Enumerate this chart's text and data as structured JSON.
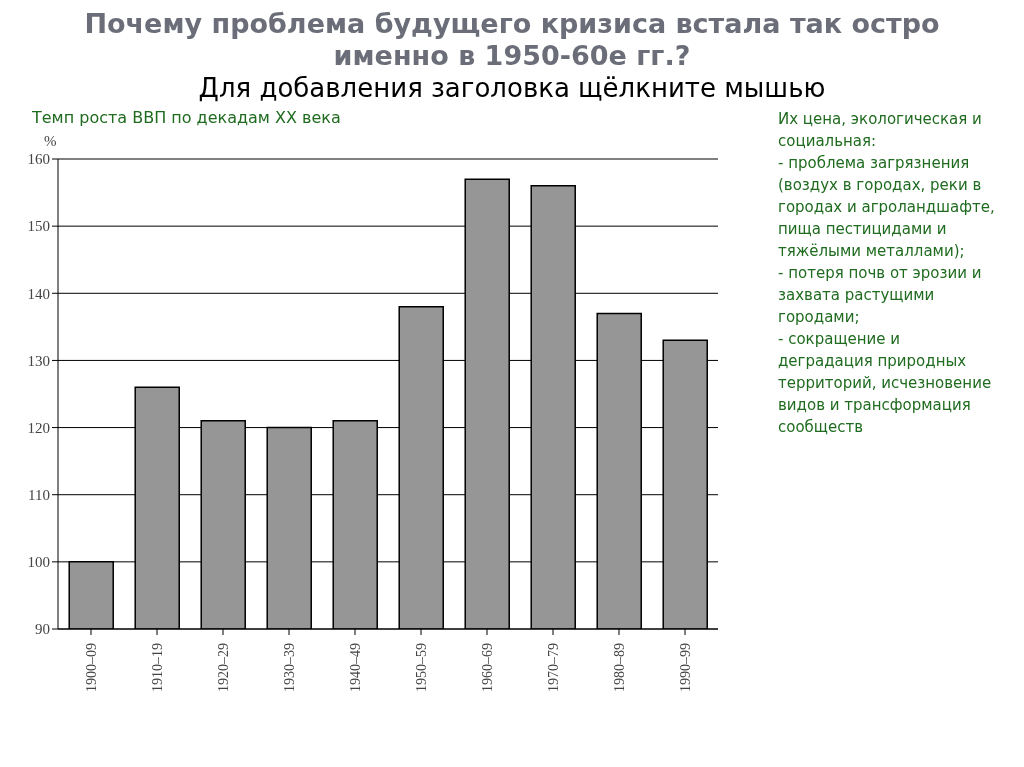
{
  "chart_data": {
    "type": "bar",
    "title": "Почему проблема будущего кризиса встала так остро именно в 1950-60е гг.?",
    "subtitle": "Темп роста ВВП по декадам XX века",
    "ylabel": "%",
    "annotations": [
      "Для добавления заголовка щёлкните мышью",
      "Их цена, экологическая и социальная:\n- проблема загрязнения (воздух в городах, реки в городах и агроландшафте, пища пестицидами и тяжёлыми металлами);\n- потеря почв от эрозии и захвата растущими городами;\n- сокращение и деградация природных территорий, исчезновение видов и трансформация сообществ"
    ],
    "categories": [
      "1900–09",
      "1910–19",
      "1920–29",
      "1930–39",
      "1940–49",
      "1950–59",
      "1960–69",
      "1970–79",
      "1980–89",
      "1990–99"
    ],
    "values": [
      100,
      126,
      121,
      120,
      121,
      138,
      157,
      156,
      137,
      133
    ],
    "color": "#969696",
    "ylim": [
      90,
      160
    ],
    "yticks": [
      90,
      100,
      110,
      120,
      130,
      140,
      150,
      160
    ],
    "grid": "y"
  }
}
